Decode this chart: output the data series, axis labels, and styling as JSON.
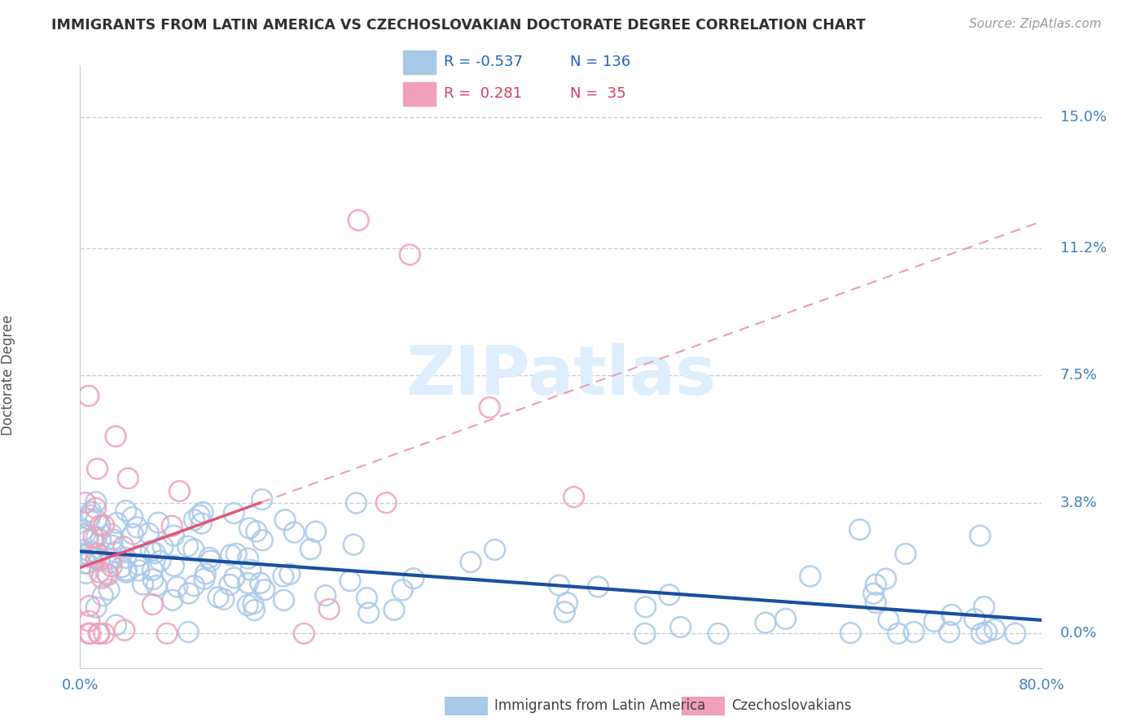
{
  "title": "IMMIGRANTS FROM LATIN AMERICA VS CZECHOSLOVAKIAN DOCTORATE DEGREE CORRELATION CHART",
  "source": "Source: ZipAtlas.com",
  "ylabel": "Doctorate Degree",
  "ytick_values": [
    0.0,
    3.8,
    7.5,
    11.2,
    15.0
  ],
  "ytick_labels": [
    "0.0%",
    "3.8%",
    "7.5%",
    "11.2%",
    "15.0%"
  ],
  "xlim": [
    0.0,
    80.0
  ],
  "ylim": [
    -1.0,
    16.5
  ],
  "legend_blue_R": "-0.537",
  "legend_blue_N": "136",
  "legend_pink_R": "0.281",
  "legend_pink_N": "35",
  "blue_dot_color": "#a8c8e8",
  "pink_dot_color": "#f0a0b8",
  "blue_line_color": "#1a4fa0",
  "pink_line_color": "#e05878",
  "pink_dash_color": "#e8a0b0",
  "grid_color": "#c0d0e0",
  "axis_label_color": "#4080c0",
  "watermark_color": "#ddeeff",
  "legend_blue_text": "#2060c0",
  "legend_pink_text": "#d04060",
  "bottom_label_color": "#404040",
  "note_blue_R_label": "R = -0.537",
  "note_blue_N_label": "N = 136",
  "note_pink_R_label": "R =  0.281",
  "note_pink_N_label": "N =  35"
}
